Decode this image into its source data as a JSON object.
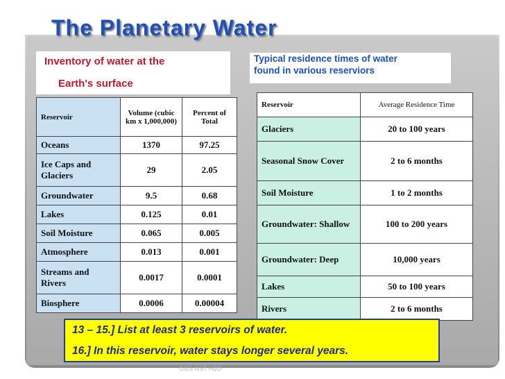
{
  "title": "The Planetary Water",
  "left_subtitle": {
    "line1": "Inventory of water at the",
    "line2": "Earth's surface"
  },
  "right_subtitle": {
    "line1": "Typical residence times of water",
    "line2": "found in various reserviors"
  },
  "inventory_table": {
    "headers": [
      "Reservoir",
      "Volume (cubic km x 1,000,000)",
      "Percent of Total"
    ],
    "rows": [
      [
        "Oceans",
        "1370",
        "97.25"
      ],
      [
        "Ice Caps and Glaciers",
        "29",
        "2.05"
      ],
      [
        "Groundwater",
        "9.5",
        "0.68"
      ],
      [
        "Lakes",
        "0.125",
        "0.01"
      ],
      [
        "Soil Moisture",
        "0.065",
        "0.005"
      ],
      [
        "Atmosphere",
        "0.013",
        "0.001"
      ],
      [
        "Streams and Rivers",
        "0.0017",
        "0.0001"
      ],
      [
        "Biosphere",
        "0.0006",
        "0.00004"
      ]
    ]
  },
  "residence_table": {
    "headers": [
      "Reservoir",
      "Average Residence Time"
    ],
    "rows": [
      [
        "Glaciers",
        "20 to 100 years"
      ],
      [
        "Seasonal Snow Cover",
        "2 to 6 months"
      ],
      [
        "Soil Moisture",
        "1 to 2 months"
      ],
      [
        "Groundwater: Shallow",
        "100 to 200 years"
      ],
      [
        "Groundwater: Deep",
        "10,000 years"
      ],
      [
        "Lakes",
        "50 to 100 years"
      ],
      [
        "Rivers",
        "2 to 6 months"
      ]
    ]
  },
  "questions": {
    "q1": "13 – 15.] List at least 3 reservoirs of water.",
    "q2": "16.] In this reservoir, water stays longer several years."
  },
  "footer": "GGS NST H2O"
}
